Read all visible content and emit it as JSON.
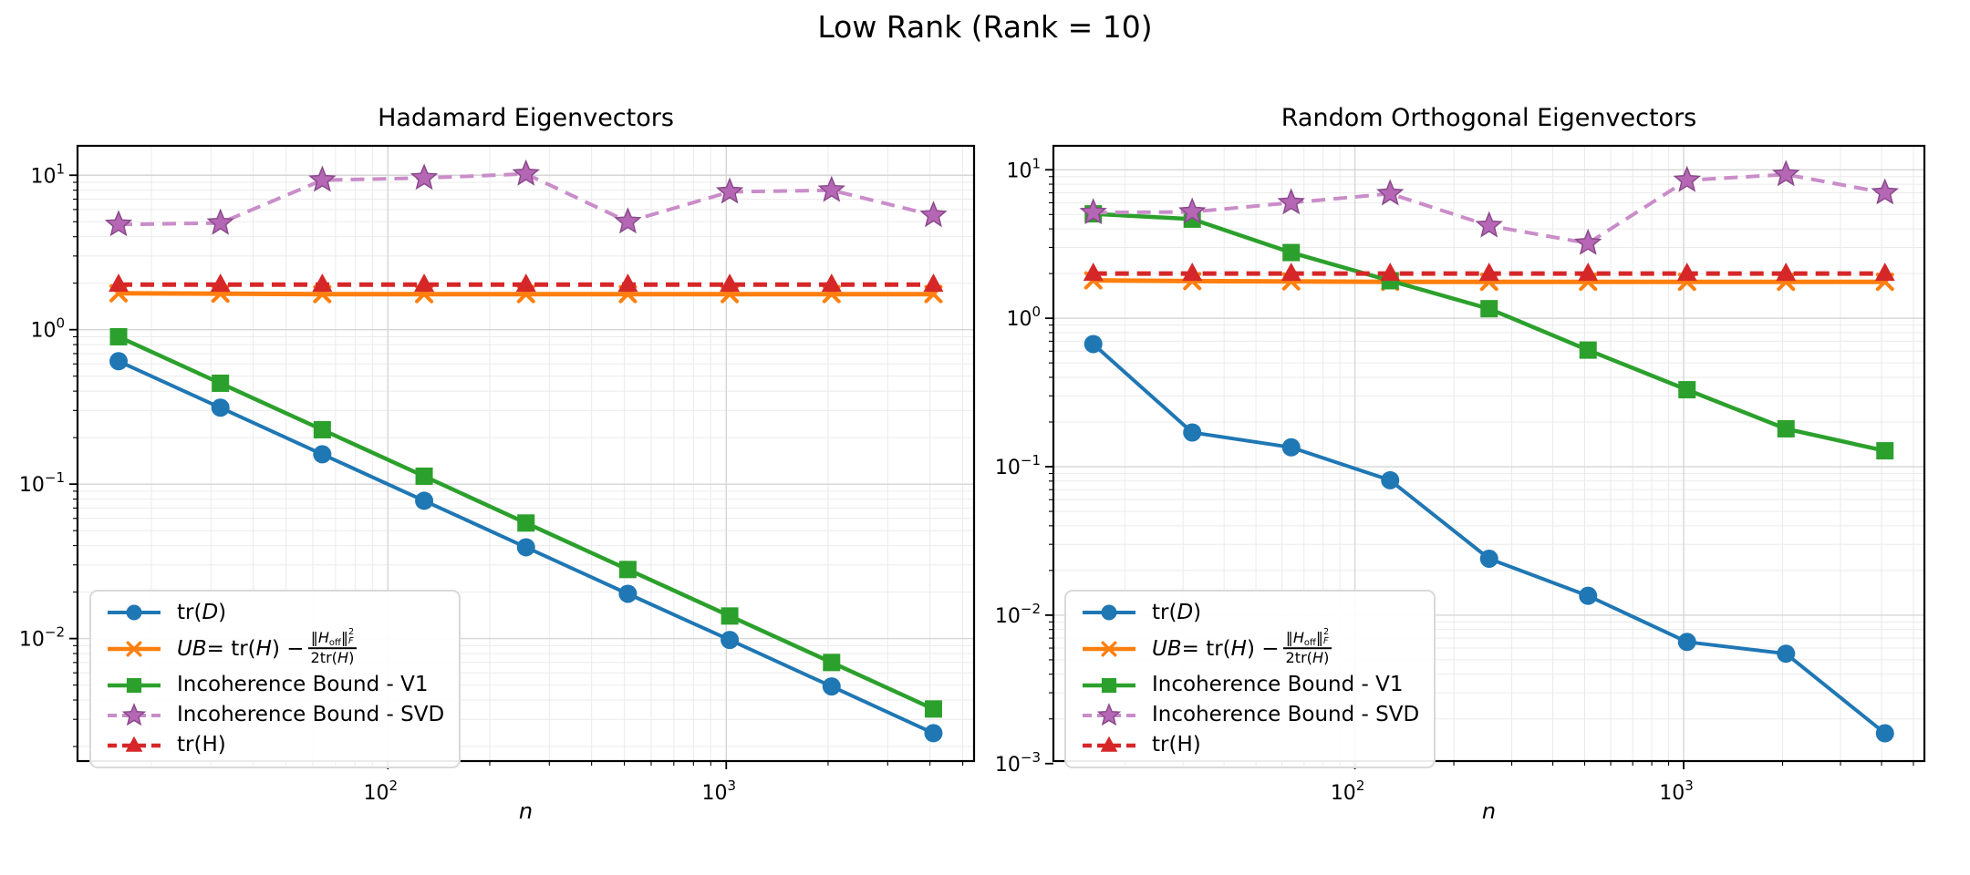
{
  "suptitle": "Low Rank (Rank = 10)",
  "colors": {
    "blue": "#1f77b4",
    "orange": "#ff7f0e",
    "green": "#2ca02c",
    "red": "#d62728",
    "purple_line": "#c98dc9",
    "purple_fill": "#b567b5",
    "purple_edge": "#8a4a8a",
    "grid_minor": "#ebebeb",
    "grid_major": "#d6d6d6",
    "spine": "#000000"
  },
  "chart_data": [
    {
      "type": "line",
      "title": "Hadamard Eigenvectors",
      "xlabel": "n",
      "xscale": "log",
      "yscale": "log",
      "grid": "both",
      "legend_position": "lower left",
      "xlim": [
        12.1,
        5400
      ],
      "ylim": [
        0.00161,
        15.5
      ],
      "xticks_exp": [
        2,
        3
      ],
      "yticks_exp": [
        1,
        0,
        -1,
        -2
      ],
      "x": [
        16,
        32,
        64,
        128,
        256,
        512,
        1024,
        2048,
        4096
      ],
      "series": [
        {
          "id": "tr-D",
          "color": "#1f77b4",
          "marker": "circle",
          "line": "solid",
          "lw": 4,
          "legend_parts": [
            {
              "t": "tr("
            },
            {
              "i": "D"
            },
            {
              "t": ")"
            }
          ],
          "values": [
            0.625,
            0.3125,
            0.156,
            0.078,
            0.039,
            0.0195,
            0.0098,
            0.0049,
            0.00244
          ]
        },
        {
          "id": "UB",
          "color": "#ff7f0e",
          "marker": "x",
          "line": "solid",
          "lw": 5,
          "legend_parts": [
            {
              "i": "UB"
            },
            {
              "t": " = tr("
            },
            {
              "i": "H"
            },
            {
              "t": ") − "
            },
            {
              "frac": {
                "num": [
                  {
                    "t": "‖"
                  },
                  {
                    "i": "H"
                  },
                  {
                    "sub": "off"
                  },
                  {
                    "t": "‖"
                  },
                  {
                    "supsub": [
                      "2",
                      "F"
                    ]
                  }
                ],
                "den": [
                  {
                    "t": "2tr("
                  },
                  {
                    "i": "H"
                  },
                  {
                    "t": ")"
                  }
                ]
              }
            }
          ],
          "values": [
            1.72,
            1.71,
            1.7,
            1.7,
            1.7,
            1.7,
            1.7,
            1.7,
            1.7
          ]
        },
        {
          "id": "incoherence-v1",
          "color": "#2ca02c",
          "marker": "square",
          "line": "solid",
          "lw": 4.5,
          "legend_parts": [
            {
              "t": "Incoherence Bound - V1"
            }
          ],
          "values": [
            0.9,
            0.45,
            0.225,
            0.1125,
            0.056,
            0.028,
            0.014,
            0.007,
            0.0035
          ]
        },
        {
          "id": "incoherence-svd",
          "color": "#c98dc9",
          "marker": "star",
          "line": "dashed",
          "lw": 4,
          "marker_fill": "#b567b5",
          "marker_edge": "#8a4a8a",
          "legend_parts": [
            {
              "t": "Incoherence Bound - SVD"
            }
          ],
          "values": [
            4.8,
            4.9,
            9.3,
            9.6,
            10.2,
            5.0,
            7.8,
            8.0,
            5.5
          ]
        },
        {
          "id": "tr-H",
          "color": "#d62728",
          "marker": "triangle",
          "line": "dashed",
          "lw": 5,
          "legend_parts": [
            {
              "t": "tr(H)"
            }
          ],
          "values": [
            1.96,
            1.96,
            1.96,
            1.96,
            1.96,
            1.96,
            1.96,
            1.96,
            1.96
          ]
        }
      ]
    },
    {
      "type": "line",
      "title": "Random Orthogonal Eigenvectors",
      "xlabel": "n",
      "xscale": "log",
      "yscale": "log",
      "grid": "both",
      "legend_position": "lower left",
      "xlim": [
        12.1,
        5400
      ],
      "ylim": [
        0.00104,
        14.5
      ],
      "xticks_exp": [
        2,
        3
      ],
      "yticks_exp": [
        1,
        0,
        -1,
        -2,
        -3
      ],
      "x": [
        16,
        32,
        64,
        128,
        256,
        512,
        1024,
        2048,
        4096
      ],
      "series": [
        {
          "id": "tr-D",
          "color": "#1f77b4",
          "marker": "circle",
          "line": "solid",
          "lw": 4,
          "legend_parts": [
            {
              "t": "tr("
            },
            {
              "i": "D"
            },
            {
              "t": ")"
            }
          ],
          "values": [
            0.67,
            0.17,
            0.135,
            0.081,
            0.024,
            0.0135,
            0.0066,
            0.0055,
            0.0016
          ]
        },
        {
          "id": "UB",
          "color": "#ff7f0e",
          "marker": "x",
          "line": "solid",
          "lw": 5,
          "legend_parts": [
            {
              "i": "UB"
            },
            {
              "t": " = tr("
            },
            {
              "i": "H"
            },
            {
              "t": ") − "
            },
            {
              "frac": {
                "num": [
                  {
                    "t": "‖"
                  },
                  {
                    "i": "H"
                  },
                  {
                    "sub": "off"
                  },
                  {
                    "t": "‖"
                  },
                  {
                    "supsub": [
                      "2",
                      "F"
                    ]
                  }
                ],
                "den": [
                  {
                    "t": "2tr("
                  },
                  {
                    "i": "H"
                  },
                  {
                    "t": ")"
                  }
                ]
              }
            }
          ],
          "values": [
            1.8,
            1.78,
            1.77,
            1.76,
            1.76,
            1.76,
            1.76,
            1.76,
            1.76
          ]
        },
        {
          "id": "incoherence-v1",
          "color": "#2ca02c",
          "marker": "square",
          "line": "solid",
          "lw": 4.5,
          "legend_parts": [
            {
              "t": "Incoherence Bound - V1"
            }
          ],
          "values": [
            5.05,
            4.65,
            2.77,
            1.79,
            1.16,
            0.61,
            0.33,
            0.18,
            0.128
          ]
        },
        {
          "id": "incoherence-svd",
          "color": "#c98dc9",
          "marker": "star",
          "line": "dashed",
          "lw": 4,
          "marker_fill": "#b567b5",
          "marker_edge": "#8a4a8a",
          "legend_parts": [
            {
              "t": "Incoherence Bound - SVD"
            }
          ],
          "values": [
            5.15,
            5.2,
            6.0,
            6.9,
            4.2,
            3.2,
            8.5,
            9.3,
            7.0
          ]
        },
        {
          "id": "tr-H",
          "color": "#d62728",
          "marker": "triangle",
          "line": "dashed",
          "lw": 5,
          "legend_parts": [
            {
              "t": "tr(H)"
            }
          ],
          "values": [
            2.0,
            2.0,
            2.0,
            2.0,
            2.0,
            2.0,
            2.0,
            2.0,
            2.0
          ]
        }
      ]
    }
  ]
}
